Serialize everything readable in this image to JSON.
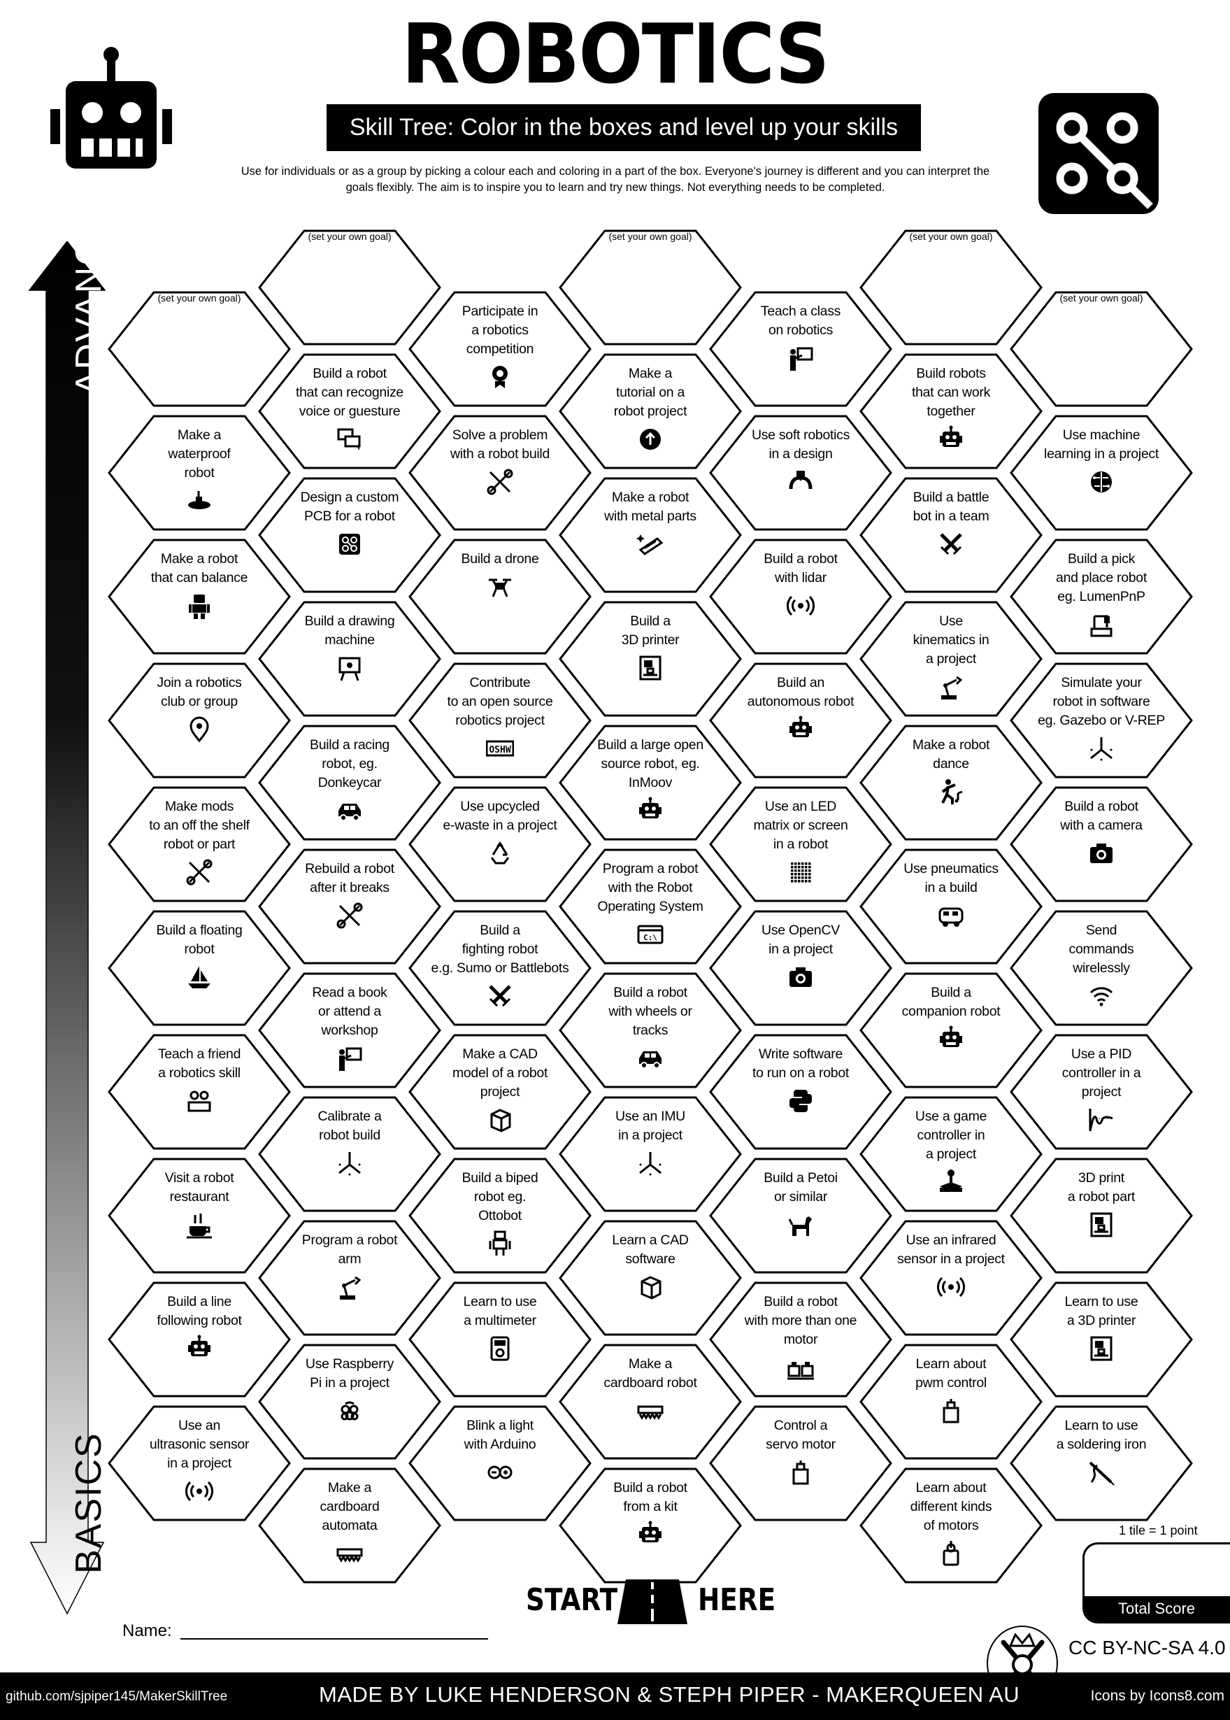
{
  "header": {
    "title": "ROBOTICS",
    "banner": "Skill Tree:  Color in the boxes and level up your skills",
    "description": "Use for individuals or as a group by picking a colour each and coloring in a part of the box.  Everyone's journey is different and you can interpret the goals flexibly.  The aim is to inspire you to learn and try new things. Not everything needs to be completed.",
    "left_icon": "robot-head-icon",
    "right_icon": "circuit-icon"
  },
  "axis": {
    "top_label": "ADVANCED",
    "bottom_label": "BASICS"
  },
  "goal_placeholder": "(set your own goal)",
  "columns": [
    [
      {
        "goal": true
      },
      {
        "label": "Make a\nwaterproof\nrobot",
        "icon": "submarine"
      },
      {
        "label": "Make a robot\nthat can balance",
        "icon": "robot-body"
      },
      {
        "label": "Join a robotics\nclub or group",
        "icon": "location"
      },
      {
        "label": "Make mods\nto an off the shelf\nrobot or part",
        "icon": "tools"
      },
      {
        "label": "Build a floating\nrobot",
        "icon": "sailboat"
      },
      {
        "label": "Teach a friend\na robotics skill",
        "icon": "friends"
      },
      {
        "label": "Visit a robot\nrestaurant",
        "icon": "restaurant"
      },
      {
        "label": "Build a line\nfollowing robot",
        "icon": "robot"
      },
      {
        "label": "Use an\nultrasonic sensor\nin a project",
        "icon": "sensor"
      }
    ],
    [
      {
        "goal": true
      },
      {
        "label": "Build a robot\nthat can recognize\nvoice or guesture",
        "icon": "chat"
      },
      {
        "label": "Design a custom\nPCB for a robot",
        "icon": "circuit"
      },
      {
        "label": "Build a drawing\nmachine",
        "icon": "easel"
      },
      {
        "label": "Build a racing\nrobot, eg.\nDonkeycar",
        "icon": "car"
      },
      {
        "label": "Rebuild a robot\nafter it breaks",
        "icon": "tools"
      },
      {
        "label": "Read a book\nor attend a\nworkshop",
        "icon": "teacher"
      },
      {
        "label": "Calibrate a\nrobot build",
        "icon": "axes"
      },
      {
        "label": "Program a robot\narm",
        "icon": "robot-arm"
      },
      {
        "label": "Use Raspberry\nPi in a project",
        "icon": "raspberry"
      },
      {
        "label": "Make a\ncardboard\nautomata",
        "icon": "conveyor"
      }
    ],
    [
      {
        "label": "Participate in\na robotics\ncompetition",
        "icon": "award"
      },
      {
        "label": "Solve a problem\nwith a robot build",
        "icon": "tools"
      },
      {
        "label": "Build a drone",
        "icon": "drone"
      },
      {
        "label": "Contribute\nto an open source\nrobotics project",
        "icon": "oshw"
      },
      {
        "label": "Use upcycled\ne-waste in a project",
        "icon": "recycle"
      },
      {
        "label": "Build a\nfighting robot\ne.g. Sumo or Battlebots",
        "icon": "swords"
      },
      {
        "label": "Make a CAD\nmodel of a robot\nproject",
        "icon": "cube"
      },
      {
        "label": "Build a biped\nrobot eg.\nOttobot",
        "icon": "biped"
      },
      {
        "label": "Learn to use\na multimeter",
        "icon": "multimeter"
      },
      {
        "label": "Blink a light\nwith Arduino",
        "icon": "arduino"
      }
    ],
    [
      {
        "goal": true
      },
      {
        "label": "Make a\ntutorial on a\nrobot project",
        "icon": "arrow-up"
      },
      {
        "label": "Make a robot\nwith metal parts",
        "icon": "metal"
      },
      {
        "label": "Build a\n3D printer",
        "icon": "printer"
      },
      {
        "label": "Build a large open\nsource robot, eg.\nInMoov",
        "icon": "robot"
      },
      {
        "label": "Program a robot\nwith the Robot\nOperating System",
        "icon": "terminal"
      },
      {
        "label": "Build a robot\nwith wheels or\ntracks",
        "icon": "car"
      },
      {
        "label": "Use an IMU\nin a project",
        "icon": "axes"
      },
      {
        "label": "Learn a CAD\nsoftware",
        "icon": "cube"
      },
      {
        "label": "Make a\ncardboard robot",
        "icon": "conveyor"
      },
      {
        "label": "Build a robot\nfrom a kit",
        "icon": "robot"
      }
    ],
    [
      {
        "label": "Teach a class\non robotics",
        "icon": "teacher"
      },
      {
        "label": "Use soft robotics\nin a design",
        "icon": "claw"
      },
      {
        "label": "Build a robot\nwith lidar",
        "icon": "sensor"
      },
      {
        "label": "Build an\nautonomous robot",
        "icon": "robot"
      },
      {
        "label": "Use an LED\nmatrix or screen\nin a robot",
        "icon": "led-matrix"
      },
      {
        "label": "Use OpenCV\nin a project",
        "icon": "camera"
      },
      {
        "label": "Write software\nto run on a robot",
        "icon": "python"
      },
      {
        "label": "Build a Petoi\nor similar",
        "icon": "dog"
      },
      {
        "label": "Build a robot\nwith more than one\nmotor",
        "icon": "motors"
      },
      {
        "label": "Control a\nservo motor",
        "icon": "servo"
      }
    ],
    [
      {
        "goal": true
      },
      {
        "label": "Build robots\nthat can work\ntogether",
        "icon": "robot"
      },
      {
        "label": "Build a battle\nbot in a team",
        "icon": "swords"
      },
      {
        "label": "Use\nkinematics in\na project",
        "icon": "robot-arm"
      },
      {
        "label": "Make a robot\ndance",
        "icon": "dance"
      },
      {
        "label": "Use pneumatics\nin a build",
        "icon": "vehicle"
      },
      {
        "label": "Build a\ncompanion robot",
        "icon": "robot"
      },
      {
        "label": "Use a game\ncontroller in\na project",
        "icon": "joystick"
      },
      {
        "label": "Use an infrared\nsensor in a project",
        "icon": "sensor"
      },
      {
        "label": "Learn about\npwm control",
        "icon": "servo"
      },
      {
        "label": "Learn about\ndifferent kinds\nof motors",
        "icon": "motor"
      }
    ],
    [
      {
        "goal": true
      },
      {
        "label": "Use machine\nlearning in a project",
        "icon": "brain"
      },
      {
        "label": "Build a pick\nand place robot\neg. LumenPnP",
        "icon": "pnp"
      },
      {
        "label": "Simulate your\nrobot in software\neg. Gazebo or V-REP",
        "icon": "axes"
      },
      {
        "label": "Build a robot\nwith a camera",
        "icon": "camera"
      },
      {
        "label": "Send\ncommands\nwirelessly",
        "icon": "wifi"
      },
      {
        "label": "Use a PID\ncontroller in a\nproject",
        "icon": "graph"
      },
      {
        "label": "3D print\na robot part",
        "icon": "printer"
      },
      {
        "label": "Learn to use\na 3D printer",
        "icon": "printer"
      },
      {
        "label": "Learn to use\na soldering iron",
        "icon": "soldering"
      }
    ]
  ],
  "start": {
    "left": "START",
    "right": "HERE"
  },
  "name_label": "Name:",
  "score": {
    "note": "1 tile = 1 point",
    "label": "Total Score"
  },
  "license": "CC BY-NC-SA 4.0",
  "footer": {
    "github": "github.com/sjpiper145/MakerSkillTree",
    "credits": "MADE BY LUKE HENDERSON & STEPH PIPER  -  MAKERQUEEN AU",
    "icons_credit": "Icons by Icons8.com"
  },
  "colors": {
    "ink": "#000000",
    "paper": "#ffffff"
  }
}
